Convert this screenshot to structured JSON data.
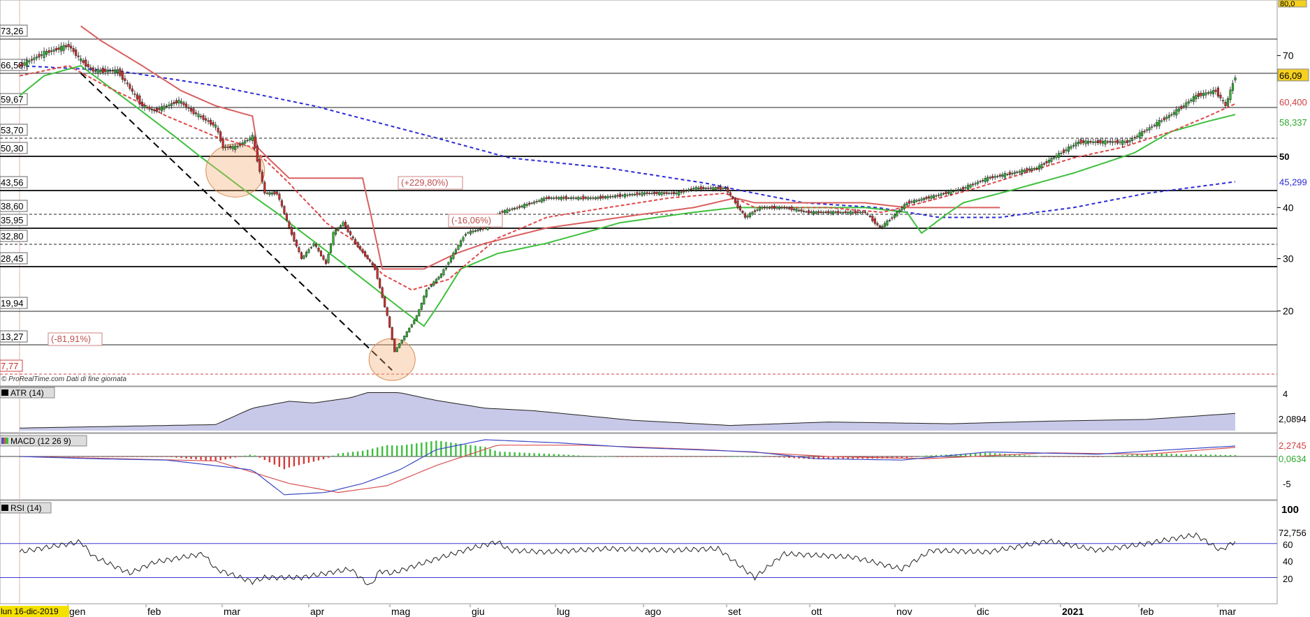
{
  "watermark": "© ProRealTime.com  Dati di fine giornata",
  "cursor_date": "lun 16-dic-2019",
  "top_right_value": "80,0",
  "colors": {
    "up": "#2db52d",
    "down": "#d42b2b",
    "candle_outline": "#222222",
    "sma_short": "#e04848",
    "sma_long": "#2b2bd6",
    "trail_red": "#d96060",
    "trail_green": "#3ec03e",
    "atr_fill": "#c8c8e8",
    "macd_pos": "#3cbe3c",
    "macd_neg": "#d63a3a",
    "macd_line": "#3a4ac8",
    "signal_line": "#d85050",
    "rsi": "#222222",
    "hline": "#3a3ad0"
  },
  "chart_data": [
    {
      "type": "candlestick",
      "panel": "price",
      "ylim": [
        5,
        82
      ],
      "y_ticks": [
        "20",
        "30",
        "40",
        "50",
        "70"
      ],
      "x_months": [
        "gen",
        "feb",
        "mar",
        "apr",
        "mag",
        "giu",
        "lug",
        "ago",
        "set",
        "ott",
        "nov",
        "dic",
        "2021",
        "feb",
        "mar"
      ],
      "support_resistance_levels": [
        "73,26",
        "66,50",
        "59,67",
        "53,70",
        "50,30",
        "43,56",
        "38,60",
        "35,95",
        "32,80",
        "28,45",
        "19,94",
        "13,27",
        "7,77"
      ],
      "labels_right": {
        "last_price": "66,09",
        "sma_short": "60,400",
        "trail_green": "58,337",
        "level_bold": "50",
        "sma_long": "45,299"
      },
      "annotations": [
        "(+229,80%)",
        "(-16,06%)",
        "(-81,91%)"
      ],
      "close_path": [
        [
          0,
          68
        ],
        [
          10,
          70.5
        ],
        [
          20,
          72
        ],
        [
          25,
          69
        ],
        [
          30,
          67
        ],
        [
          40,
          67
        ],
        [
          50,
          60
        ],
        [
          55,
          59
        ],
        [
          65,
          61
        ],
        [
          70,
          59
        ],
        [
          80,
          56
        ],
        [
          83,
          52
        ],
        [
          88,
          52
        ],
        [
          95,
          54
        ],
        [
          100,
          43
        ],
        [
          105,
          43
        ],
        [
          110,
          36
        ],
        [
          115,
          30
        ],
        [
          120,
          33
        ],
        [
          125,
          29
        ],
        [
          128,
          35
        ],
        [
          132,
          37
        ],
        [
          137,
          33
        ],
        [
          142,
          30
        ],
        [
          145,
          28
        ],
        [
          150,
          19
        ],
        [
          153,
          12
        ],
        [
          157,
          15
        ],
        [
          162,
          19
        ],
        [
          166,
          24
        ],
        [
          172,
          27
        ],
        [
          177,
          31
        ],
        [
          182,
          35
        ],
        [
          190,
          36
        ],
        [
          196,
          39
        ],
        [
          203,
          40
        ],
        [
          215,
          42
        ],
        [
          235,
          42
        ],
        [
          255,
          43
        ],
        [
          268,
          43
        ],
        [
          275,
          44
        ],
        [
          288,
          44
        ],
        [
          292,
          41
        ],
        [
          296,
          38
        ],
        [
          302,
          40
        ],
        [
          312,
          40
        ],
        [
          322,
          39
        ],
        [
          332,
          39
        ],
        [
          345,
          39
        ],
        [
          351,
          36
        ],
        [
          356,
          38
        ],
        [
          362,
          41
        ],
        [
          370,
          42
        ],
        [
          385,
          44
        ],
        [
          395,
          46
        ],
        [
          405,
          47
        ],
        [
          415,
          48
        ],
        [
          425,
          51
        ],
        [
          432,
          53
        ],
        [
          442,
          53
        ],
        [
          452,
          53
        ],
        [
          462,
          56
        ],
        [
          472,
          59
        ],
        [
          480,
          62
        ],
        [
          488,
          63
        ],
        [
          492,
          60
        ],
        [
          496,
          66
        ]
      ],
      "sma_short_path": [
        [
          0,
          66
        ],
        [
          20,
          68
        ],
        [
          35,
          64
        ],
        [
          60,
          58
        ],
        [
          80,
          54
        ],
        [
          95,
          52
        ],
        [
          110,
          45
        ],
        [
          125,
          37
        ],
        [
          135,
          34
        ],
        [
          148,
          27
        ],
        [
          160,
          24
        ],
        [
          175,
          26
        ],
        [
          195,
          34
        ],
        [
          215,
          38
        ],
        [
          240,
          40
        ],
        [
          265,
          42
        ],
        [
          288,
          43
        ],
        [
          300,
          40
        ],
        [
          330,
          40
        ],
        [
          352,
          39
        ],
        [
          368,
          41
        ],
        [
          390,
          44
        ],
        [
          410,
          47
        ],
        [
          430,
          50
        ],
        [
          450,
          52
        ],
        [
          470,
          55
        ],
        [
          485,
          58
        ],
        [
          496,
          60.4
        ]
      ],
      "sma_long_path": [
        [
          0,
          68
        ],
        [
          40,
          67
        ],
        [
          80,
          64
        ],
        [
          120,
          60
        ],
        [
          160,
          55
        ],
        [
          200,
          50
        ],
        [
          240,
          48
        ],
        [
          280,
          45
        ],
        [
          320,
          41
        ],
        [
          350,
          40
        ],
        [
          375,
          38
        ],
        [
          400,
          38
        ],
        [
          430,
          40
        ],
        [
          460,
          43
        ],
        [
          496,
          45.3
        ]
      ],
      "trail_red_path": [
        [
          25,
          76
        ],
        [
          33,
          73
        ],
        [
          50,
          68
        ],
        [
          66,
          63
        ],
        [
          80,
          60
        ],
        [
          95,
          58
        ],
        [
          97,
          52
        ],
        [
          110,
          46
        ],
        [
          140,
          46
        ],
        [
          148,
          28
        ],
        [
          165,
          28
        ],
        [
          178,
          31
        ],
        [
          190,
          33
        ],
        [
          215,
          36
        ],
        [
          245,
          38
        ],
        [
          275,
          40
        ],
        [
          292,
          42
        ],
        [
          300,
          41
        ],
        [
          345,
          41
        ],
        [
          362,
          40
        ],
        [
          372,
          40
        ],
        [
          400,
          40
        ]
      ],
      "trail_green_path": [
        [
          0,
          62
        ],
        [
          10,
          66
        ],
        [
          25,
          68
        ],
        [
          165,
          17
        ],
        [
          172,
          22
        ],
        [
          180,
          28
        ],
        [
          195,
          31
        ],
        [
          215,
          33
        ],
        [
          245,
          37
        ],
        [
          275,
          39
        ],
        [
          292,
          40
        ],
        [
          345,
          40
        ],
        [
          362,
          39
        ],
        [
          368,
          35
        ],
        [
          385,
          41
        ],
        [
          400,
          43
        ],
        [
          430,
          47
        ],
        [
          455,
          51
        ],
        [
          470,
          55
        ],
        [
          485,
          57
        ],
        [
          496,
          58.3
        ]
      ]
    },
    {
      "type": "area",
      "panel": "ATR",
      "name": "ATR (14)",
      "last": "2,0894",
      "y_ticks": [
        "4"
      ],
      "ylim": [
        0,
        4.6
      ],
      "path": [
        [
          0,
          0.3
        ],
        [
          40,
          0.5
        ],
        [
          80,
          0.7
        ],
        [
          95,
          2.6
        ],
        [
          110,
          3.4
        ],
        [
          120,
          3.2
        ],
        [
          135,
          3.8
        ],
        [
          142,
          4.4
        ],
        [
          155,
          4.4
        ],
        [
          170,
          3.5
        ],
        [
          190,
          2.6
        ],
        [
          210,
          2.3
        ],
        [
          250,
          1.2
        ],
        [
          290,
          0.6
        ],
        [
          330,
          1.0
        ],
        [
          380,
          0.8
        ],
        [
          420,
          1.1
        ],
        [
          460,
          1.3
        ],
        [
          496,
          2.0
        ]
      ]
    },
    {
      "type": "histogram+line",
      "panel": "MACD",
      "name": "MACD (12 26 9)",
      "last_macd": "2,2745",
      "last_hist": "0,0634",
      "y_ticks": [
        "-5"
      ],
      "ylim": [
        -9,
        4
      ],
      "macd_path": [
        [
          0,
          0
        ],
        [
          30,
          -0.5
        ],
        [
          60,
          -0.8
        ],
        [
          95,
          -3
        ],
        [
          108,
          -8.5
        ],
        [
          125,
          -8
        ],
        [
          140,
          -6
        ],
        [
          155,
          -3
        ],
        [
          170,
          1.5
        ],
        [
          190,
          3.7
        ],
        [
          220,
          3.0
        ],
        [
          250,
          2
        ],
        [
          300,
          1
        ],
        [
          325,
          -0.5
        ],
        [
          360,
          -0.8
        ],
        [
          395,
          1
        ],
        [
          440,
          0.5
        ],
        [
          470,
          1.5
        ],
        [
          496,
          2.3
        ]
      ],
      "signal_path": [
        [
          0,
          0
        ],
        [
          40,
          -0.5
        ],
        [
          80,
          -1
        ],
        [
          110,
          -6
        ],
        [
          130,
          -8
        ],
        [
          150,
          -6.5
        ],
        [
          170,
          -2
        ],
        [
          195,
          2.5
        ],
        [
          230,
          2.5
        ],
        [
          280,
          1.5
        ],
        [
          330,
          0
        ],
        [
          370,
          -0.5
        ],
        [
          420,
          0.8
        ],
        [
          460,
          0.5
        ],
        [
          496,
          2.0
        ]
      ]
    },
    {
      "type": "line",
      "panel": "RSI",
      "name": "RSI (14)",
      "last": "72,756",
      "y_ticks": [
        "100",
        "60",
        "40",
        "20"
      ],
      "ylim": [
        0,
        110
      ],
      "overbought": 70,
      "oversold": 30,
      "path": [
        [
          0,
          60
        ],
        [
          10,
          65
        ],
        [
          25,
          72
        ],
        [
          30,
          55
        ],
        [
          45,
          35
        ],
        [
          55,
          48
        ],
        [
          75,
          58
        ],
        [
          80,
          40
        ],
        [
          95,
          25
        ],
        [
          100,
          30
        ],
        [
          115,
          30
        ],
        [
          125,
          35
        ],
        [
          135,
          40
        ],
        [
          143,
          20
        ],
        [
          147,
          38
        ],
        [
          152,
          35
        ],
        [
          170,
          52
        ],
        [
          185,
          65
        ],
        [
          195,
          72
        ],
        [
          200,
          62
        ],
        [
          215,
          60
        ],
        [
          240,
          64
        ],
        [
          265,
          62
        ],
        [
          285,
          64
        ],
        [
          300,
          30
        ],
        [
          312,
          58
        ],
        [
          340,
          54
        ],
        [
          360,
          40
        ],
        [
          372,
          62
        ],
        [
          395,
          60
        ],
        [
          420,
          73
        ],
        [
          440,
          62
        ],
        [
          460,
          70
        ],
        [
          475,
          78
        ],
        [
          480,
          80
        ],
        [
          490,
          62
        ],
        [
          496,
          72.8
        ]
      ]
    }
  ]
}
